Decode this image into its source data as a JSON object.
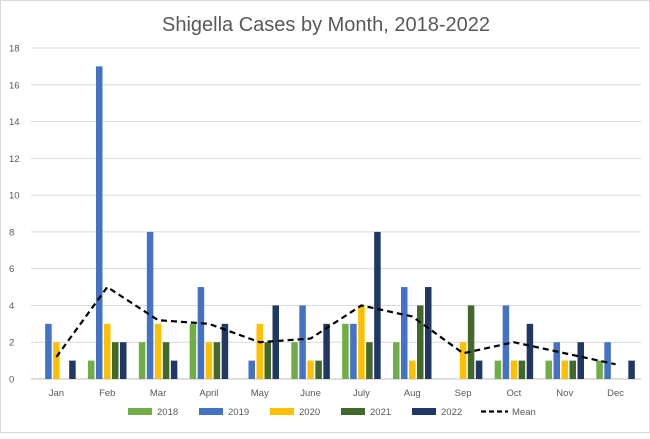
{
  "chart_data": {
    "type": "bar",
    "title": "Shigella Cases by Month, 2018-2022",
    "categories": [
      "Jan",
      "Feb",
      "Mar",
      "April",
      "May",
      "June",
      "July",
      "Aug",
      "Sep",
      "Oct",
      "Nov",
      "Dec"
    ],
    "ylim": [
      0,
      18
    ],
    "yticks": [
      0,
      2,
      4,
      6,
      8,
      10,
      12,
      14,
      16,
      18
    ],
    "grid": true,
    "legend_position": "bottom",
    "series": [
      {
        "name": "2018",
        "color": "#70ad47",
        "values": [
          0,
          1,
          2,
          3,
          0,
          2,
          3,
          2,
          0,
          1,
          1,
          1
        ]
      },
      {
        "name": "2019",
        "color": "#4472c4",
        "values": [
          3,
          17,
          8,
          5,
          1,
          4,
          3,
          5,
          0,
          4,
          2,
          2
        ]
      },
      {
        "name": "2020",
        "color": "#ffc000",
        "values": [
          2,
          3,
          3,
          2,
          3,
          1,
          4,
          1,
          2,
          1,
          1,
          0
        ]
      },
      {
        "name": "2021",
        "color": "#43682b",
        "values": [
          0,
          2,
          2,
          2,
          2,
          1,
          2,
          4,
          4,
          1,
          1,
          0
        ]
      },
      {
        "name": "2022",
        "color": "#203864",
        "values": [
          1,
          2,
          1,
          3,
          4,
          3,
          8,
          5,
          1,
          3,
          2,
          1
        ]
      }
    ],
    "mean_series": {
      "name": "Mean",
      "color": "#000000",
      "style": "dashed",
      "values": [
        1.2,
        5.0,
        3.2,
        3.0,
        2.0,
        2.2,
        4.0,
        3.4,
        1.4,
        2.0,
        1.4,
        0.8
      ]
    }
  }
}
